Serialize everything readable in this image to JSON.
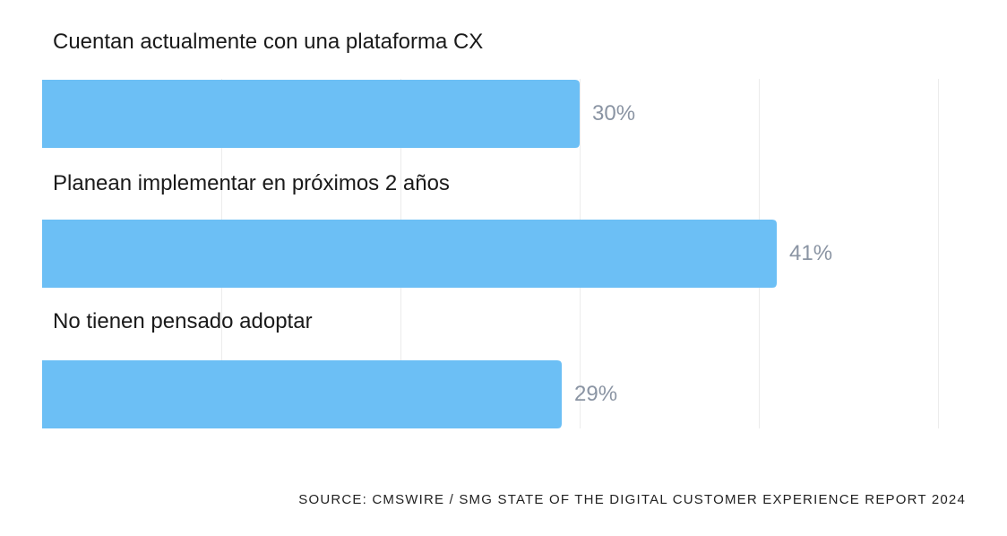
{
  "chart_data": {
    "type": "bar",
    "orientation": "horizontal",
    "categories": [
      "Cuentan actualmente con una plataforma CX",
      "Planean implementar en próximos 2 años",
      "No tienen pensado adoptar"
    ],
    "values": [
      30,
      41,
      29
    ],
    "value_labels": [
      "30%",
      "41%",
      "29%"
    ],
    "xlim": [
      0,
      50
    ],
    "gridlines": [
      0,
      10,
      20,
      30,
      40,
      50
    ],
    "grid": true,
    "bar_color": "#6cbff5",
    "grid_color": "#ececec",
    "source": "SOURCE: CMSWIRE / SMG STATE OF THE DIGITAL CUSTOMER EXPERIENCE REPORT 2024"
  }
}
